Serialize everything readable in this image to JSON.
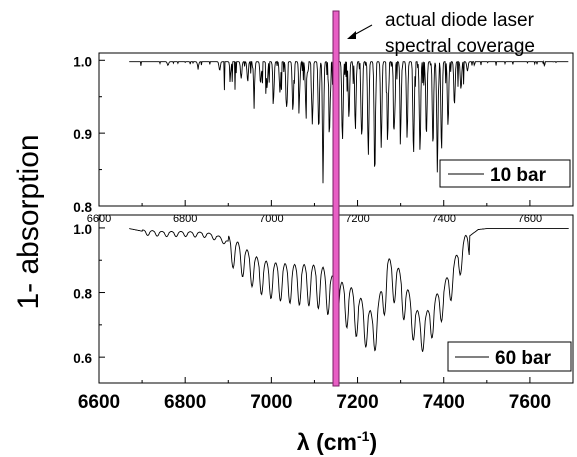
{
  "chart_data": [
    {
      "type": "line",
      "panel": "top",
      "xlim": [
        6600,
        7700
      ],
      "ylim": [
        0.8,
        1.01
      ],
      "x_ticks": [
        6600,
        6800,
        7000,
        7200,
        7400,
        7600
      ],
      "x_tick_labels": [
        "6600",
        "6800",
        "7000",
        "7200",
        "7400",
        "7600"
      ],
      "y_ticks": [
        0.8,
        0.9,
        1.0
      ],
      "y_tick_labels": [
        "0.8",
        "0.9",
        "1.0"
      ],
      "x_range_data": [
        6670,
        7690
      ],
      "series": [
        {
          "name": "10 bar",
          "color": "#000000",
          "baseline": 0.998,
          "absorption_lines": [
            [
              6760,
              0.993
            ],
            [
              6830,
              0.991
            ],
            [
              6880,
              0.986
            ],
            [
              6905,
              0.982
            ],
            [
              6930,
              0.975
            ],
            [
              6945,
              0.972
            ],
            [
              6960,
              0.955
            ],
            [
              6975,
              0.968
            ],
            [
              6990,
              0.962
            ],
            [
              7005,
              0.948
            ],
            [
              7020,
              0.955
            ],
            [
              7035,
              0.935
            ],
            [
              7050,
              0.93
            ],
            [
              7065,
              0.95
            ],
            [
              7080,
              0.94
            ],
            [
              7095,
              0.925
            ],
            [
              7110,
              0.905
            ],
            [
              7120,
              0.85
            ],
            [
              7135,
              0.905
            ],
            [
              7150,
              0.915
            ],
            [
              7165,
              0.89
            ],
            [
              7180,
              0.92
            ],
            [
              7195,
              0.905
            ],
            [
              7210,
              0.893
            ],
            [
              7225,
              0.87
            ],
            [
              7240,
              0.843
            ],
            [
              7255,
              0.88
            ],
            [
              7270,
              0.9
            ],
            [
              7285,
              0.905
            ],
            [
              7300,
              0.91
            ],
            [
              7315,
              0.893
            ],
            [
              7330,
              0.87
            ],
            [
              7345,
              0.875
            ],
            [
              7360,
              0.9
            ],
            [
              7375,
              0.885
            ],
            [
              7385,
              0.885
            ],
            [
              7395,
              0.875
            ],
            [
              7410,
              0.91
            ],
            [
              7425,
              0.94
            ],
            [
              7440,
              0.96
            ],
            [
              7455,
              0.985
            ]
          ]
        }
      ]
    },
    {
      "type": "line",
      "panel": "bottom",
      "xlim": [
        6600,
        7700
      ],
      "ylim": [
        0.52,
        1.04
      ],
      "x_ticks": [
        6600,
        6800,
        7000,
        7200,
        7400,
        7600
      ],
      "x_tick_labels": [
        "6600",
        "6800",
        "7000",
        "7200",
        "7400",
        "7600"
      ],
      "y_ticks": [
        0.6,
        0.8,
        1.0
      ],
      "y_tick_labels": [
        "0.6",
        "0.8",
        "1.0"
      ],
      "series": [
        {
          "name": "60 bar",
          "color": "#000000",
          "envelope": [
            [
              6670,
              0.998
            ],
            [
              6700,
              0.99
            ],
            [
              6750,
              0.985
            ],
            [
              6800,
              0.985
            ],
            [
              6850,
              0.982
            ],
            [
              6880,
              0.97
            ],
            [
              6900,
              0.955
            ],
            [
              6925,
              0.93
            ],
            [
              6950,
              0.9
            ],
            [
              6975,
              0.875
            ],
            [
              7000,
              0.865
            ],
            [
              7030,
              0.86
            ],
            [
              7060,
              0.855
            ],
            [
              7090,
              0.855
            ],
            [
              7120,
              0.845
            ],
            [
              7140,
              0.82
            ],
            [
              7160,
              0.8
            ],
            [
              7180,
              0.79
            ],
            [
              7200,
              0.76
            ],
            [
              7220,
              0.73
            ],
            [
              7235,
              0.7
            ],
            [
              7250,
              0.75
            ],
            [
              7270,
              0.875
            ],
            [
              7290,
              0.86
            ],
            [
              7310,
              0.8
            ],
            [
              7330,
              0.74
            ],
            [
              7345,
              0.7
            ],
            [
              7360,
              0.71
            ],
            [
              7380,
              0.76
            ],
            [
              7400,
              0.8
            ],
            [
              7420,
              0.86
            ],
            [
              7440,
              0.93
            ],
            [
              7460,
              0.975
            ],
            [
              7480,
              0.995
            ],
            [
              7500,
              0.998
            ],
            [
              7690,
              0.998
            ]
          ]
        }
      ]
    }
  ],
  "figure": {
    "y_axis_title": "1- absorption",
    "x_axis_title_main": "λ (cm",
    "x_axis_title_sup": "-1",
    "x_axis_title_close": ")",
    "annotation": {
      "line1": "actual diode laser",
      "line2": "spectral coverage",
      "x_center": 7150,
      "bar_color": "#e85fc4"
    },
    "legend_top": "10 bar",
    "legend_bottom": "60 bar"
  }
}
